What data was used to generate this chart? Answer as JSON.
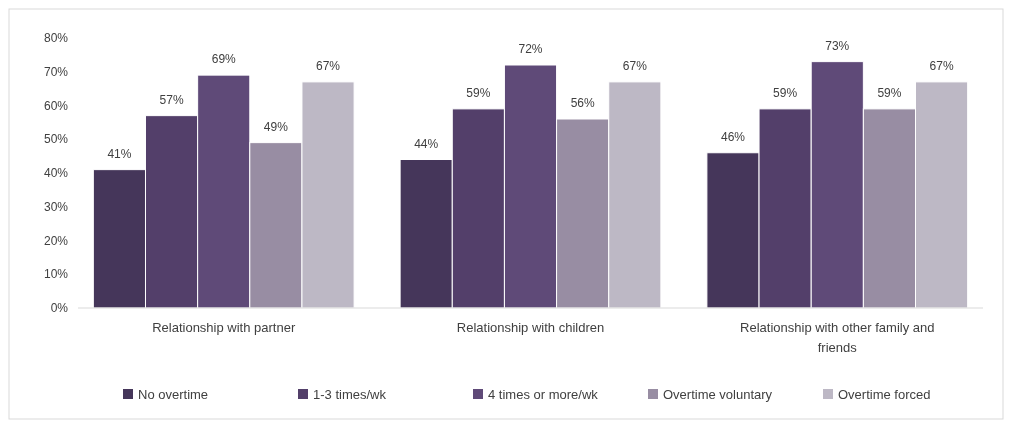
{
  "chart_data": {
    "type": "bar",
    "categories": [
      "Relationship with partner",
      "Relationship with children",
      "Relationship with other family and friends"
    ],
    "series": [
      {
        "name": "No overtime",
        "color": "#45365a",
        "values": [
          41,
          44,
          46
        ],
        "value_labels": [
          "41%",
          "44%",
          "46%"
        ]
      },
      {
        "name": "1-3 times/wk",
        "color": "#533f6a",
        "values": [
          57,
          59,
          59
        ],
        "value_labels": [
          "57%",
          "59%",
          "59%"
        ]
      },
      {
        "name": "4 times or more/wk",
        "color": "#5f4a78",
        "values": [
          69,
          72,
          73
        ],
        "value_labels": [
          "69%",
          "72%",
          "73%"
        ]
      },
      {
        "name": "Overtime voluntary",
        "color": "#988da3",
        "values": [
          49,
          56,
          59
        ],
        "value_labels": [
          "49%",
          "56%",
          "59%"
        ]
      },
      {
        "name": "Overtime forced",
        "color": "#bdb8c5",
        "values": [
          67,
          67,
          67
        ],
        "value_labels": [
          "67%",
          "67%",
          "67%"
        ]
      }
    ],
    "ylim": [
      0,
      80
    ],
    "yticks": [
      {
        "value": 0,
        "label": "0%"
      },
      {
        "value": 10,
        "label": "10%"
      },
      {
        "value": 20,
        "label": "20%"
      },
      {
        "value": 30,
        "label": "30%"
      },
      {
        "value": 40,
        "label": "40%"
      },
      {
        "value": 50,
        "label": "50%"
      },
      {
        "value": 60,
        "label": "60%"
      },
      {
        "value": 70,
        "label": "70%"
      },
      {
        "value": 80,
        "label": "80%"
      }
    ],
    "legend": "bottom"
  }
}
